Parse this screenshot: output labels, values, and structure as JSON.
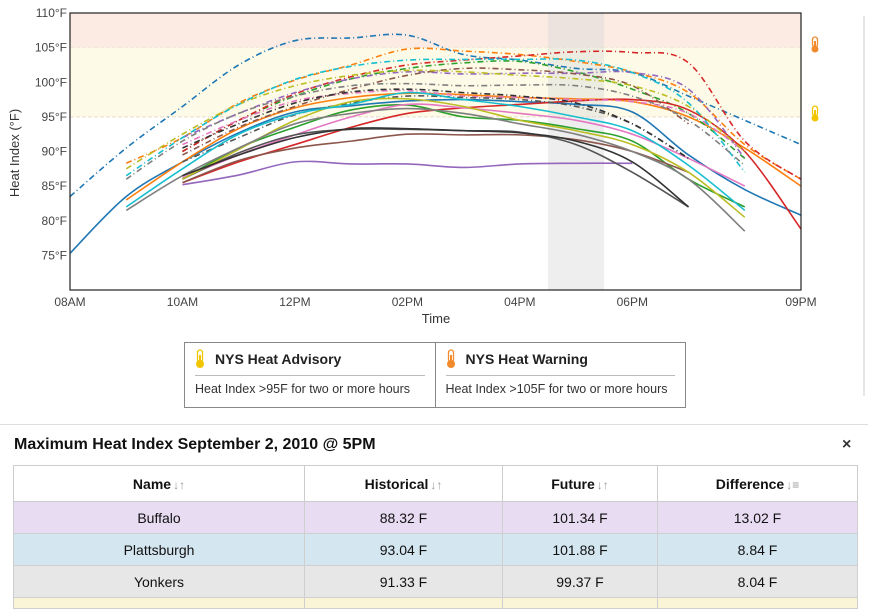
{
  "chart_data": {
    "type": "line",
    "title": "",
    "xlabel": "Time",
    "ylabel": "Heat Index (°F)",
    "ylim": [
      70,
      110
    ],
    "xlim": [
      8,
      21
    ],
    "y_ticks": [
      "75°F",
      "80°F",
      "85°F",
      "90°F",
      "95°F",
      "100°F",
      "105°F",
      "110°F"
    ],
    "x_ticks": [
      {
        "t": 8,
        "label": "08AM"
      },
      {
        "t": 10,
        "label": "10AM"
      },
      {
        "t": 12,
        "label": "12PM"
      },
      {
        "t": 14,
        "label": "02PM"
      },
      {
        "t": 16,
        "label": "04PM"
      },
      {
        "t": 18,
        "label": "06PM"
      },
      {
        "t": 21,
        "label": "09PM"
      }
    ],
    "bands": [
      {
        "from": 105,
        "to": 110,
        "label": "NYS Heat Warning",
        "color": "#fbebe3"
      },
      {
        "from": 95,
        "to": 105,
        "label": "NYS Heat Advisory",
        "color": "#fdfbe8"
      }
    ],
    "highlight_x": [
      16.5,
      17.5
    ],
    "grid": false,
    "series": [
      {
        "color": "#1f77b4",
        "dash": "none",
        "x": [
          8,
          9,
          10,
          11,
          12,
          13,
          14,
          15,
          16,
          17,
          18,
          19,
          20,
          21
        ],
        "values": [
          75.3,
          83.5,
          88.5,
          92.7,
          95.7,
          96.6,
          97.3,
          97.5,
          97.2,
          96.8,
          95.7,
          89.5,
          84.5,
          80.8
        ]
      },
      {
        "color": "#1f77b4",
        "dash": "6,3,1,3",
        "x": [
          8,
          9,
          10,
          11,
          12,
          13,
          14,
          15,
          16,
          17,
          18,
          19,
          20,
          21
        ],
        "values": [
          83.5,
          90.5,
          96.5,
          102.5,
          106,
          106.4,
          106.8,
          104,
          103.2,
          102,
          101.4,
          98,
          94.5,
          91
        ]
      },
      {
        "color": "#ff7f0e",
        "dash": "none",
        "x": [
          9,
          10,
          11,
          12,
          13,
          14,
          15,
          16,
          17,
          18,
          19,
          20,
          21
        ],
        "values": [
          83,
          88.5,
          93.3,
          96.3,
          97.8,
          98.4,
          98.2,
          97.8,
          97.6,
          97.2,
          95,
          90.5,
          85
        ]
      },
      {
        "color": "#ff7f0e",
        "dash": "6,3,1,3",
        "x": [
          9,
          10,
          11,
          12,
          13,
          14,
          15,
          16,
          17,
          18,
          19,
          20,
          21
        ],
        "values": [
          88.3,
          92,
          97,
          100.3,
          102.5,
          104.8,
          104.5,
          104,
          103,
          101.5,
          98.5,
          91,
          86
        ]
      },
      {
        "color": "#2ca02c",
        "dash": "none",
        "x": [
          10,
          11,
          12,
          13,
          14,
          15,
          16,
          17,
          18,
          19,
          20
        ],
        "values": [
          86,
          90.5,
          93.5,
          96,
          96.7,
          95,
          94.5,
          93.3,
          91.5,
          86,
          82
        ]
      },
      {
        "color": "#2ca02c",
        "dash": "6,3,1,3",
        "x": [
          10,
          11,
          12,
          13,
          14,
          15,
          16,
          17,
          18,
          19,
          20
        ],
        "values": [
          90,
          94.5,
          98,
          100.5,
          102,
          102.8,
          103,
          101.5,
          99,
          95.5,
          89
        ]
      },
      {
        "color": "#d62728",
        "dash": "none",
        "x": [
          10,
          11,
          12,
          13,
          14,
          15,
          16,
          17,
          18,
          19,
          20,
          21
        ],
        "values": [
          85.5,
          88.5,
          91,
          93.5,
          95.5,
          96.3,
          96.8,
          97.3,
          97.5,
          96,
          90,
          78.8
        ]
      },
      {
        "color": "#d62728",
        "dash": "6,3,1,3",
        "x": [
          10,
          11,
          12,
          13,
          14,
          15,
          16,
          17,
          18,
          19,
          20,
          21
        ],
        "values": [
          90,
          94.5,
          98.3,
          100.8,
          102.5,
          103.2,
          103.8,
          104.4,
          104.3,
          102.8,
          91.5,
          86
        ]
      },
      {
        "color": "#9467bd",
        "dash": "none",
        "x": [
          10,
          11,
          12,
          13,
          14,
          15,
          16,
          17,
          18
        ],
        "values": [
          85.2,
          86.6,
          88.5,
          88.2,
          88.2,
          87.7,
          88.2,
          88.3,
          88.3
        ]
      },
      {
        "color": "#9467bd",
        "dash": "6,3,1,3",
        "x": [
          10,
          11,
          12,
          13,
          14,
          15,
          16,
          17,
          18,
          19,
          20
        ],
        "values": [
          92,
          95.5,
          98.5,
          100.5,
          101.5,
          101.2,
          101.3,
          101.3,
          101.4,
          99,
          89
        ]
      },
      {
        "color": "#8c564b",
        "dash": "none",
        "x": [
          10,
          11,
          12,
          13,
          14,
          15,
          16,
          17,
          18,
          19
        ],
        "values": [
          85.5,
          88.7,
          90.5,
          91.5,
          92.5,
          92.4,
          92.4,
          91.7,
          90,
          87
        ]
      },
      {
        "color": "#8c564b",
        "dash": "6,3,1,3",
        "x": [
          10,
          11,
          12,
          13,
          14,
          15,
          16,
          17,
          18,
          19
        ],
        "values": [
          89.5,
          93.5,
          96.5,
          99,
          101,
          102,
          101.8,
          101.2,
          99.5,
          94
        ]
      },
      {
        "color": "#e377c2",
        "dash": "none",
        "x": [
          10,
          11,
          12,
          13,
          14,
          15,
          16,
          17,
          18,
          19,
          20
        ],
        "values": [
          86.2,
          89.5,
          92.4,
          95,
          96.8,
          96.3,
          95.5,
          94.5,
          92.5,
          89,
          85
        ]
      },
      {
        "color": "#e377c2",
        "dash": "6,3,1,3",
        "x": [
          10,
          11,
          12,
          13,
          14,
          15,
          16,
          17,
          18,
          19,
          20
        ],
        "values": [
          91,
          94.5,
          97.3,
          98.4,
          98.8,
          98,
          97.8,
          97.5,
          97.2,
          95.5,
          90
        ]
      },
      {
        "color": "#555555",
        "dash": "none",
        "x": [
          10,
          11,
          12,
          13,
          14,
          15,
          16,
          17,
          18,
          19
        ],
        "values": [
          86,
          89.8,
          92.4,
          93.2,
          93.2,
          93,
          92.8,
          91,
          87,
          82
        ]
      },
      {
        "color": "#555555",
        "dash": "6,3,1,3",
        "x": [
          10,
          11,
          12,
          13,
          14,
          15,
          16,
          17,
          18,
          19
        ],
        "values": [
          88.5,
          92,
          95.3,
          97,
          98,
          97.8,
          97.5,
          96.5,
          94,
          89
        ]
      },
      {
        "color": "#bcbd22",
        "dash": "none",
        "x": [
          10,
          11,
          12,
          13,
          14,
          15,
          16,
          17,
          18,
          19,
          20
        ],
        "values": [
          86,
          90.3,
          94.5,
          97.2,
          97.6,
          96.5,
          94.5,
          93,
          91,
          87,
          80.5
        ]
      },
      {
        "color": "#bcbd22",
        "dash": "6,3,1,3",
        "x": [
          9,
          10,
          11,
          12,
          13,
          14,
          15,
          16,
          17,
          18,
          19,
          20
        ],
        "values": [
          87.5,
          92.5,
          96.8,
          99.5,
          101,
          101.7,
          101.5,
          101,
          100.5,
          99.5,
          96.5,
          90
        ]
      },
      {
        "color": "#17becf",
        "dash": "none",
        "x": [
          9,
          10,
          11,
          12,
          13,
          14,
          15,
          16,
          17,
          18,
          19,
          20
        ],
        "values": [
          82,
          87.5,
          92.5,
          95.4,
          96.8,
          98.5,
          97.5,
          96.5,
          95,
          93,
          88,
          81.5
        ]
      },
      {
        "color": "#17becf",
        "dash": "6,3,1,3",
        "x": [
          9,
          10,
          11,
          12,
          13,
          14,
          15,
          16,
          17,
          18,
          19,
          20
        ],
        "values": [
          86.5,
          92,
          96.8,
          100.4,
          102.3,
          103.2,
          103.3,
          103.3,
          103.2,
          101.4,
          97,
          87
        ]
      },
      {
        "color": "#7f7f7f",
        "dash": "none",
        "x": [
          9,
          10,
          11,
          12,
          13,
          14,
          15,
          16,
          17,
          18,
          19,
          20
        ],
        "values": [
          81.5,
          86.5,
          90.5,
          94,
          95.5,
          96.2,
          95.5,
          94,
          92.5,
          90,
          86,
          78.5
        ]
      },
      {
        "color": "#7f7f7f",
        "dash": "6,3,1,3",
        "x": [
          9,
          10,
          11,
          12,
          13,
          14,
          15,
          16,
          17,
          18,
          19,
          20
        ],
        "values": [
          86,
          91.5,
          95.5,
          98,
          99.5,
          99.8,
          99.5,
          99.6,
          99.5,
          98,
          94.5,
          88
        ]
      },
      {
        "color": "#333333",
        "dash": "none",
        "x": [
          10,
          11,
          12,
          13,
          14,
          15,
          16,
          17,
          18,
          19
        ],
        "values": [
          86.5,
          89.5,
          92,
          93.3,
          93.3,
          93,
          92.7,
          91.5,
          88.5,
          82
        ]
      },
      {
        "color": "#333333",
        "dash": "6,3,1,3",
        "x": [
          10,
          11,
          12,
          13,
          14,
          15,
          16,
          17,
          18,
          19
        ],
        "values": [
          90.5,
          94,
          97,
          98.6,
          99,
          98.5,
          98,
          97,
          94,
          89
        ]
      }
    ]
  },
  "legend": {
    "advisory_title": "NYS Heat Advisory",
    "advisory_desc": "Heat Index >95F for two or more hours",
    "warning_title": "NYS Heat Warning",
    "warning_desc": "Heat Index >105F for two or more hours",
    "advisory_icon": "thermometer-yellow-icon",
    "warning_icon": "thermometer-orange-icon",
    "advisory_color": "#f2c500",
    "warning_color": "#f08a2c"
  },
  "panel": {
    "title": "Maximum Heat Index September 2, 2010 @ 5PM",
    "close": "×"
  },
  "table": {
    "headers": [
      "Name",
      "Historical",
      "Future",
      "Difference"
    ],
    "sort_icons": [
      "↓↑",
      "↓↑",
      "↓↑",
      "↓≡"
    ],
    "rows": [
      [
        "Buffalo",
        "88.32 F",
        "101.34 F",
        "13.02 F"
      ],
      [
        "Plattsburgh",
        "93.04 F",
        "101.88 F",
        "8.84 F"
      ],
      [
        "Yonkers",
        "91.33 F",
        "99.37 F",
        "8.04 F"
      ]
    ]
  }
}
